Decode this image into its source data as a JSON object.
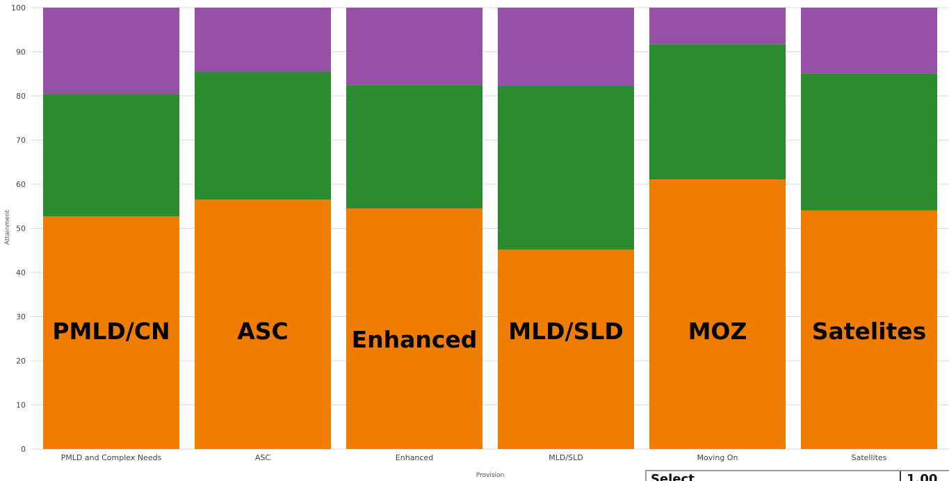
{
  "chart_data": {
    "type": "bar",
    "stacked": true,
    "categories": [
      "PMLD and Complex Needs",
      "ASC",
      "Enhanced",
      "MLD/SLD",
      "Moving On",
      "Satellites"
    ],
    "overlay_labels": [
      "PMLD/CN",
      "ASC",
      "Enhanced",
      "MLD/SLD",
      "MOZ",
      "Satelites"
    ],
    "series": [
      {
        "color": "#ef7d00",
        "values": [
          52.7,
          56.5,
          54.5,
          45.2,
          61.1,
          54.1
        ]
      },
      {
        "color": "#2a8c2e",
        "values": [
          27.7,
          29.0,
          28.0,
          37.0,
          30.6,
          31.0
        ]
      },
      {
        "color": "#9650a6",
        "values": [
          19.6,
          14.5,
          17.5,
          17.8,
          8.3,
          14.9
        ]
      }
    ],
    "xlabel": "Provision",
    "ylabel": "Attainment",
    "ylim": [
      0,
      100
    ],
    "yticks": [
      0,
      10,
      20,
      30,
      40,
      50,
      60,
      70,
      80,
      90,
      100
    ],
    "grid": true
  },
  "select_panel": {
    "label": "Select",
    "value": "1.00"
  }
}
